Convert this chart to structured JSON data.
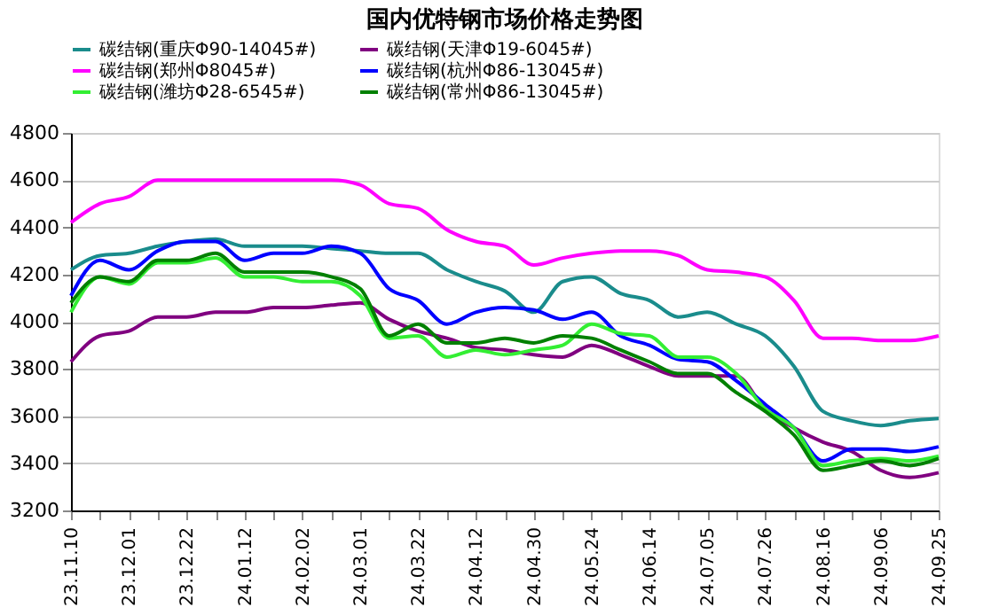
{
  "chart_data": {
    "type": "line",
    "title": "国内优特钢市场价格走势图",
    "categories": [
      "23.11.10",
      null,
      "23.12.01",
      null,
      "23.12.22",
      null,
      "24.01.12",
      null,
      "24.02.02",
      null,
      "24.03.01",
      null,
      "24.03.22",
      null,
      "24.04.12",
      null,
      "24.04.30",
      null,
      "24.05.24",
      null,
      "24.06.14",
      null,
      "24.07.05",
      null,
      "24.07.26",
      null,
      "24.08.16",
      null,
      "24.09.06",
      null,
      "24.09.25"
    ],
    "series": [
      {
        "name": "碳结钢(重庆Φ90-14045#)",
        "color": "#1a8c8c",
        "values": [
          4220,
          4280,
          4290,
          4320,
          4340,
          4350,
          4320,
          4320,
          4320,
          4310,
          4300,
          4290,
          4290,
          4220,
          4170,
          4130,
          4040,
          4170,
          4190,
          4120,
          4090,
          4020,
          4040,
          3990,
          3940,
          3810,
          3620,
          3580,
          3560,
          3580,
          3590
        ]
      },
      {
        "name": "碳结钢(天津Φ19-6045#)",
        "color": "#800080",
        "values": [
          3830,
          3940,
          3960,
          4020,
          4020,
          4040,
          4040,
          4060,
          4060,
          4070,
          4080,
          4010,
          3960,
          3930,
          3890,
          3880,
          3860,
          3850,
          3900,
          3860,
          3810,
          3770,
          3770,
          3770,
          3630,
          3550,
          3490,
          3450,
          3370,
          3340,
          3360
        ]
      },
      {
        "name": "碳结钢(郑州Φ8045#)",
        "color": "#ff00ff",
        "values": [
          4420,
          4500,
          4530,
          4600,
          4600,
          4600,
          4600,
          4600,
          4600,
          4600,
          4580,
          4500,
          4480,
          4390,
          4340,
          4320,
          4240,
          4270,
          4290,
          4300,
          4300,
          4280,
          4220,
          4210,
          4190,
          4090,
          3930,
          3930,
          3920,
          3920,
          3940
        ]
      },
      {
        "name": "碳结钢(杭州Φ86-13045#)",
        "color": "#0000ff",
        "values": [
          4110,
          4260,
          4220,
          4300,
          4340,
          4340,
          4260,
          4290,
          4290,
          4320,
          4290,
          4140,
          4090,
          3990,
          4040,
          4060,
          4050,
          4010,
          4040,
          3940,
          3900,
          3840,
          3830,
          3750,
          3650,
          3550,
          3410,
          3460,
          3460,
          3450,
          3470
        ]
      },
      {
        "name": "碳结钢(潍坊Φ28-6545#)",
        "color": "#33ee33",
        "values": [
          4040,
          4190,
          4160,
          4250,
          4250,
          4270,
          4190,
          4190,
          4170,
          4170,
          4110,
          3930,
          3940,
          3850,
          3880,
          3860,
          3880,
          3900,
          3990,
          3950,
          3940,
          3850,
          3850,
          3780,
          3630,
          3550,
          3390,
          3410,
          3420,
          3410,
          3430
        ]
      },
      {
        "name": "碳结钢(常州Φ86-13045#)",
        "color": "#008000",
        "values": [
          4080,
          4190,
          4170,
          4260,
          4260,
          4290,
          4210,
          4210,
          4210,
          4190,
          4140,
          3940,
          3990,
          3910,
          3910,
          3930,
          3910,
          3940,
          3930,
          3880,
          3830,
          3780,
          3780,
          3700,
          3620,
          3520,
          3370,
          3390,
          3410,
          3390,
          3420
        ]
      }
    ],
    "ylim": [
      3200,
      4800
    ],
    "yticks": [
      3200,
      3400,
      3600,
      3800,
      4000,
      4200,
      4400,
      4600,
      4800
    ],
    "grid": "y",
    "legend": "top",
    "marker": "none",
    "line_style": "solid"
  }
}
